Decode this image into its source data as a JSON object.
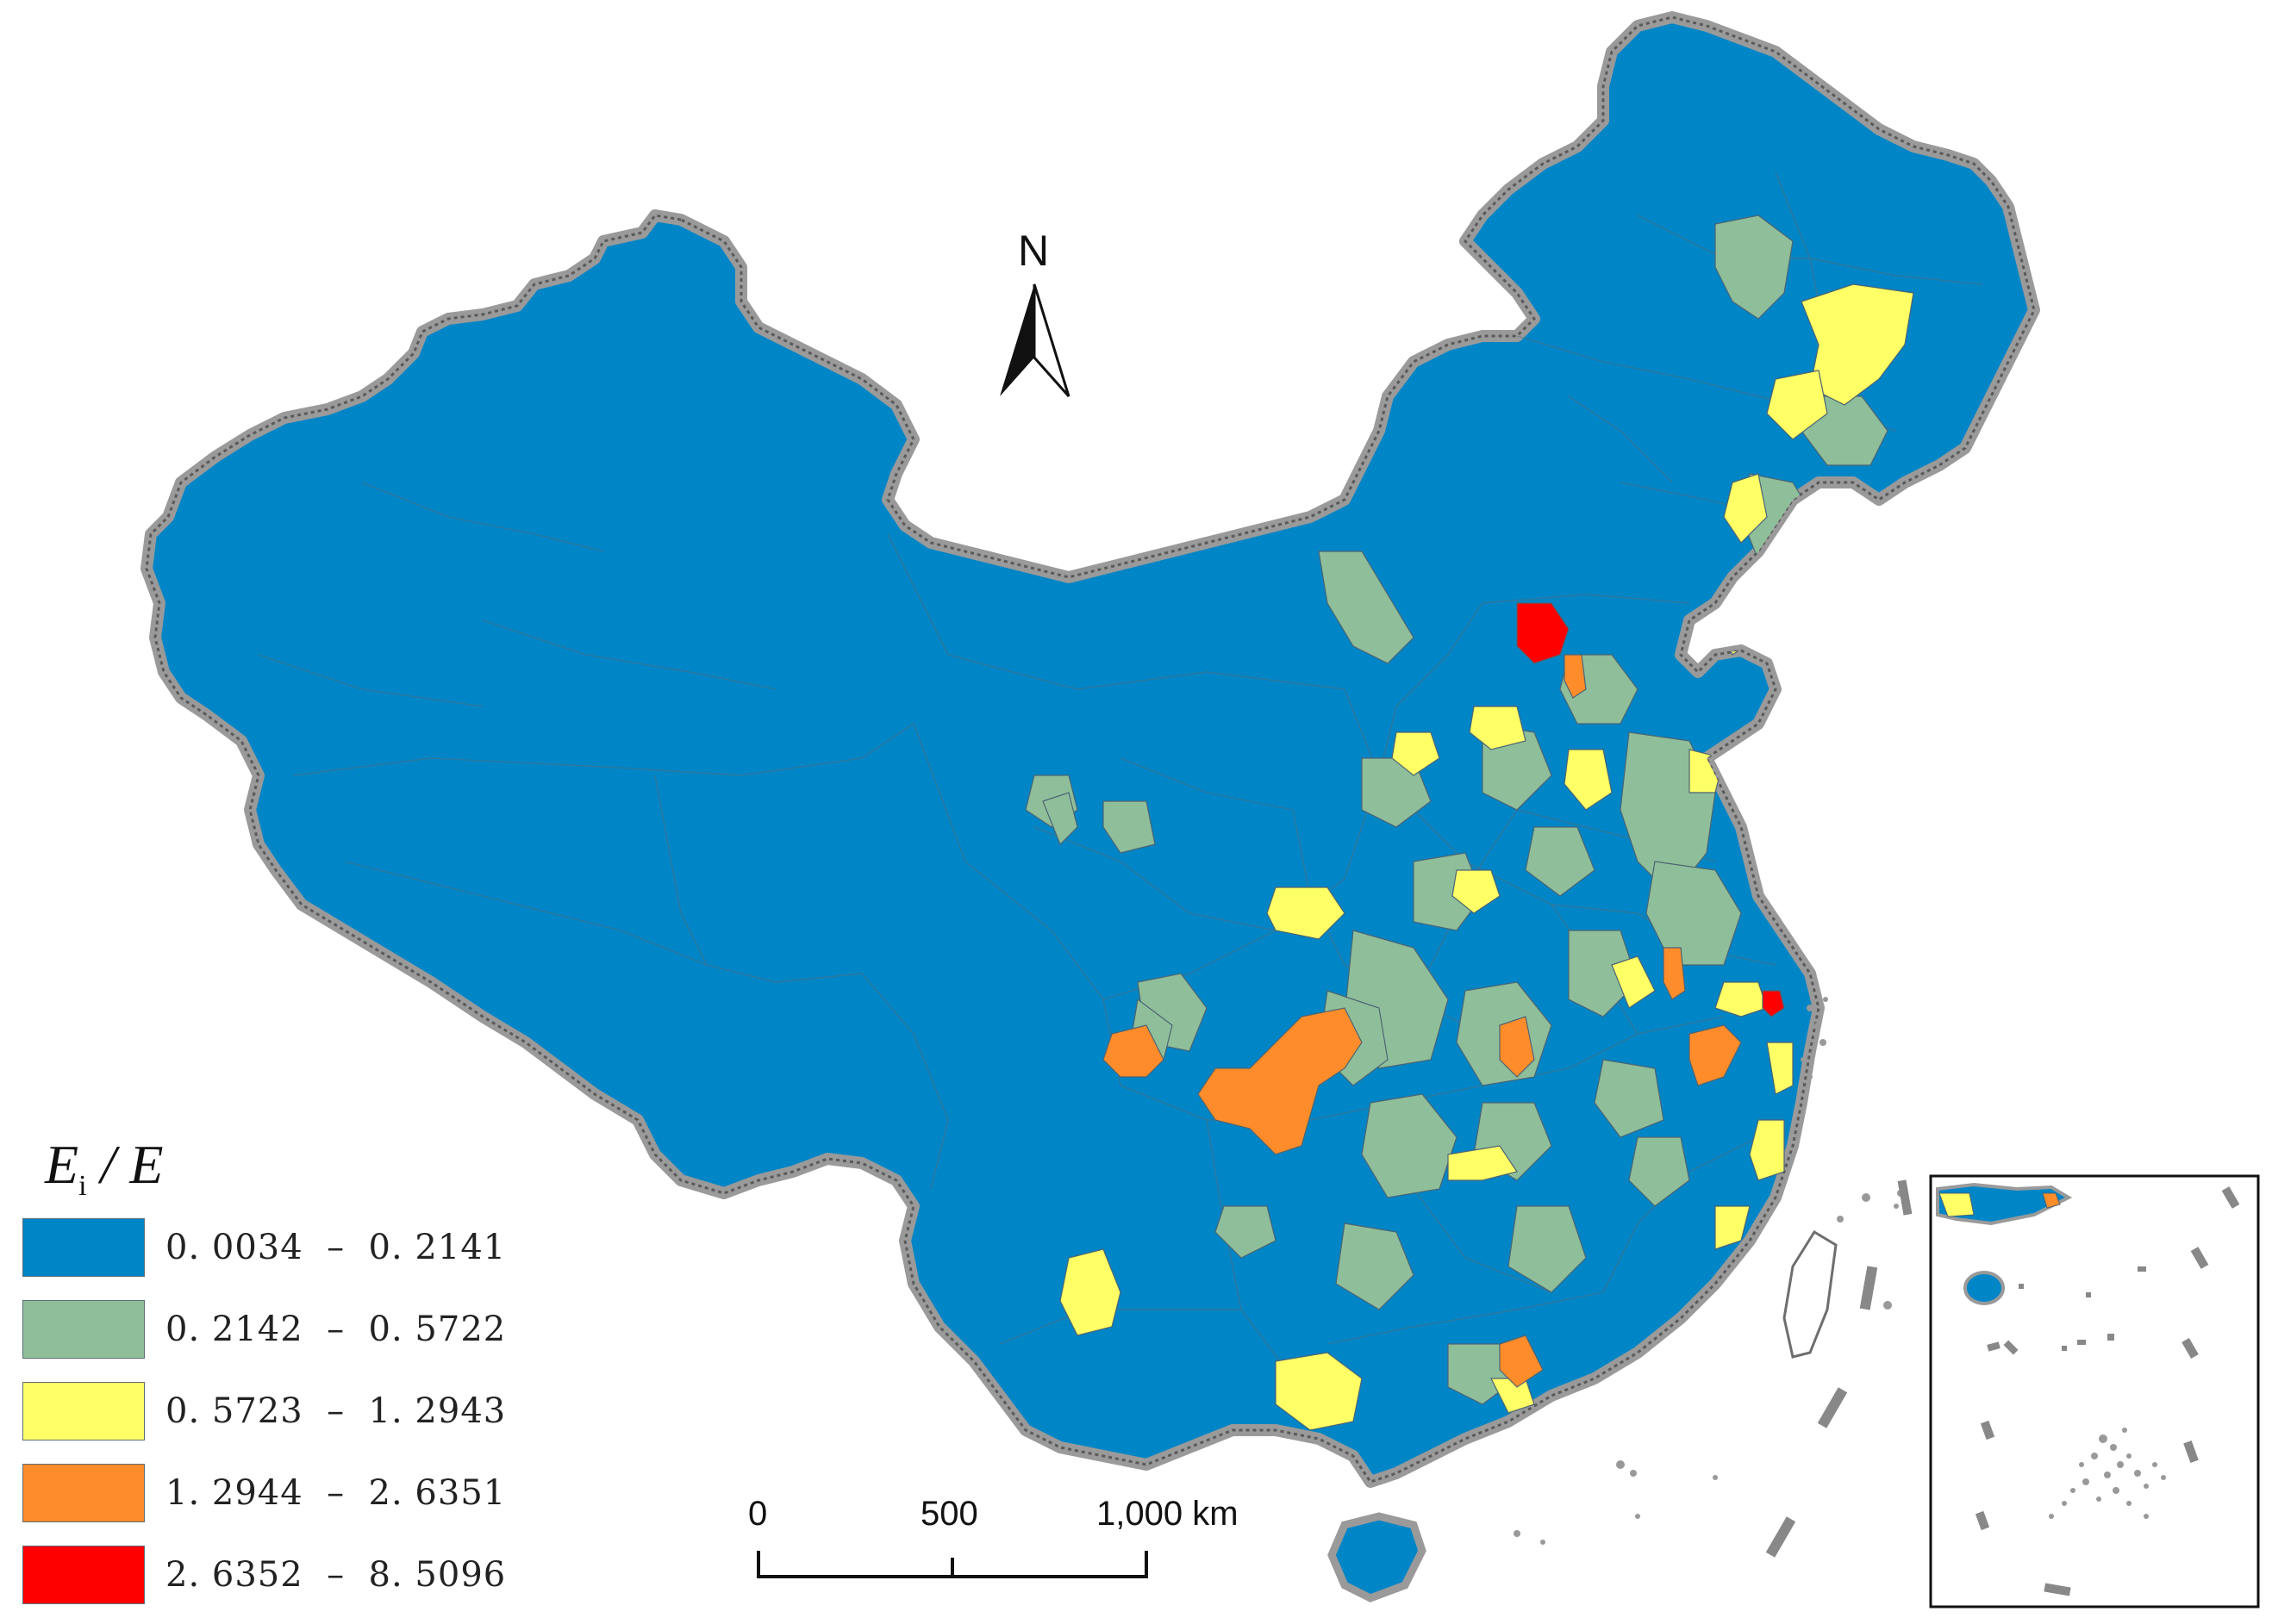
{
  "legend": {
    "title_main": "E",
    "title_sub": "i",
    "title_rest": " / E",
    "classes": [
      {
        "label": "0. 0034  –  0. 2141",
        "color": "#0085C6"
      },
      {
        "label": "0. 2142  –  0. 5722",
        "color": "#8FBF9A"
      },
      {
        "label": "0. 5723  –  1. 2943",
        "color": "#FFFF66"
      },
      {
        "label": "1. 2944  –  2. 6351",
        "color": "#FF8C2A"
      },
      {
        "label": "2. 6352  –  8. 5096",
        "color": "#FF0000"
      }
    ]
  },
  "north_arrow": {
    "label": "N"
  },
  "scale_bar": {
    "labels": [
      "0",
      "500",
      "1,000 km"
    ]
  },
  "colors": {
    "boundary": "#9a9a9a",
    "background": "#ffffff"
  }
}
